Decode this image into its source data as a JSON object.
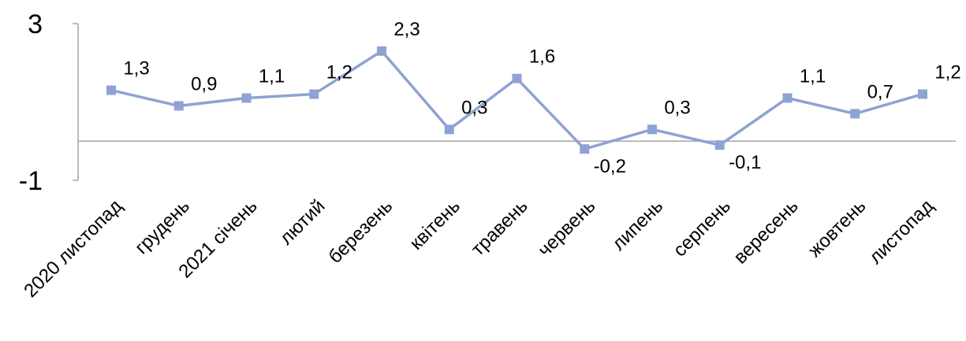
{
  "chart_data": {
    "type": "line",
    "categories": [
      "2020 листопад",
      "грудень",
      "2021 січень",
      "лютий",
      "березень",
      "квітень",
      "травень",
      "червень",
      "липень",
      "серпень",
      "вересень",
      "жовтень",
      "листопад"
    ],
    "series": [
      {
        "values": [
          1.3,
          0.9,
          1.1,
          1.2,
          2.3,
          0.3,
          1.6,
          -0.2,
          0.3,
          -0.1,
          1.1,
          0.7,
          1.2
        ],
        "labels": [
          "1,3",
          "0,9",
          "1,1",
          "1,2",
          "2,3",
          "0,3",
          "1,6",
          "-0,2",
          "0,3",
          "-0,1",
          "1,1",
          "0,7",
          "1,2"
        ],
        "color": "#8fa2d4",
        "marker": "square"
      }
    ],
    "ylim": [
      -1,
      3
    ],
    "ytick_labels": [
      "3",
      "-1"
    ],
    "title": "",
    "xlabel": "",
    "ylabel": "",
    "grid": false,
    "legend": "none"
  }
}
